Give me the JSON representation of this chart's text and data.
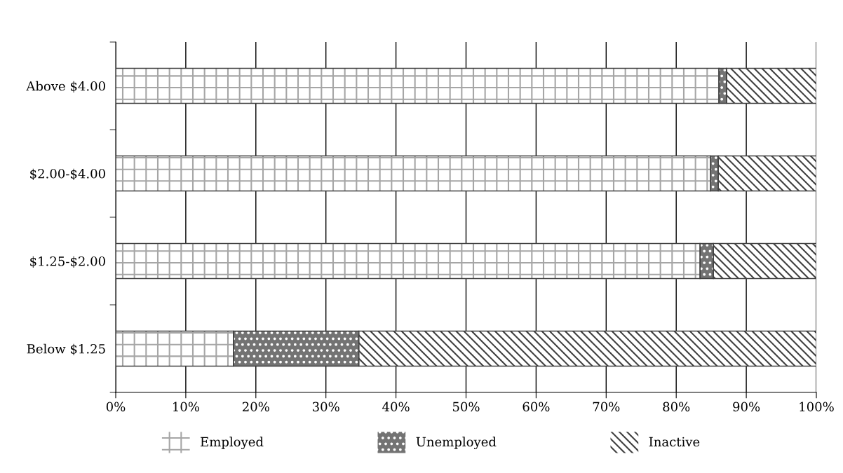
{
  "chart_data": {
    "type": "bar",
    "orientation": "horizontal",
    "stacked": true,
    "categories": [
      "Above $4.00",
      "$2.00-$4.00",
      "$1.25-$2.00",
      "Below $1.25"
    ],
    "series": [
      {
        "name": "Employed",
        "color": "#a6a6a6",
        "values": [
          86.1,
          84.9,
          83.4,
          16.8
        ]
      },
      {
        "name": "Unemployed",
        "color": "#737373",
        "values": [
          1.1,
          1.1,
          1.9,
          17.9
        ]
      },
      {
        "name": "Inactive",
        "color": "#404040",
        "values": [
          12.8,
          14.0,
          14.7,
          65.3
        ]
      }
    ],
    "xlim": [
      0,
      100
    ],
    "xticks": [
      {
        "value": 0,
        "label": "0%"
      },
      {
        "value": 10,
        "label": "10%"
      },
      {
        "value": 20,
        "label": "20%"
      },
      {
        "value": 30,
        "label": "30%"
      },
      {
        "value": 40,
        "label": "40%"
      },
      {
        "value": 50,
        "label": "50%"
      },
      {
        "value": 60,
        "label": "60%"
      },
      {
        "value": 70,
        "label": "70%"
      },
      {
        "value": 80,
        "label": "80%"
      },
      {
        "value": 90,
        "label": "90%"
      },
      {
        "value": 100,
        "label": "100%"
      }
    ],
    "grid": "x",
    "legend": "bottom"
  }
}
